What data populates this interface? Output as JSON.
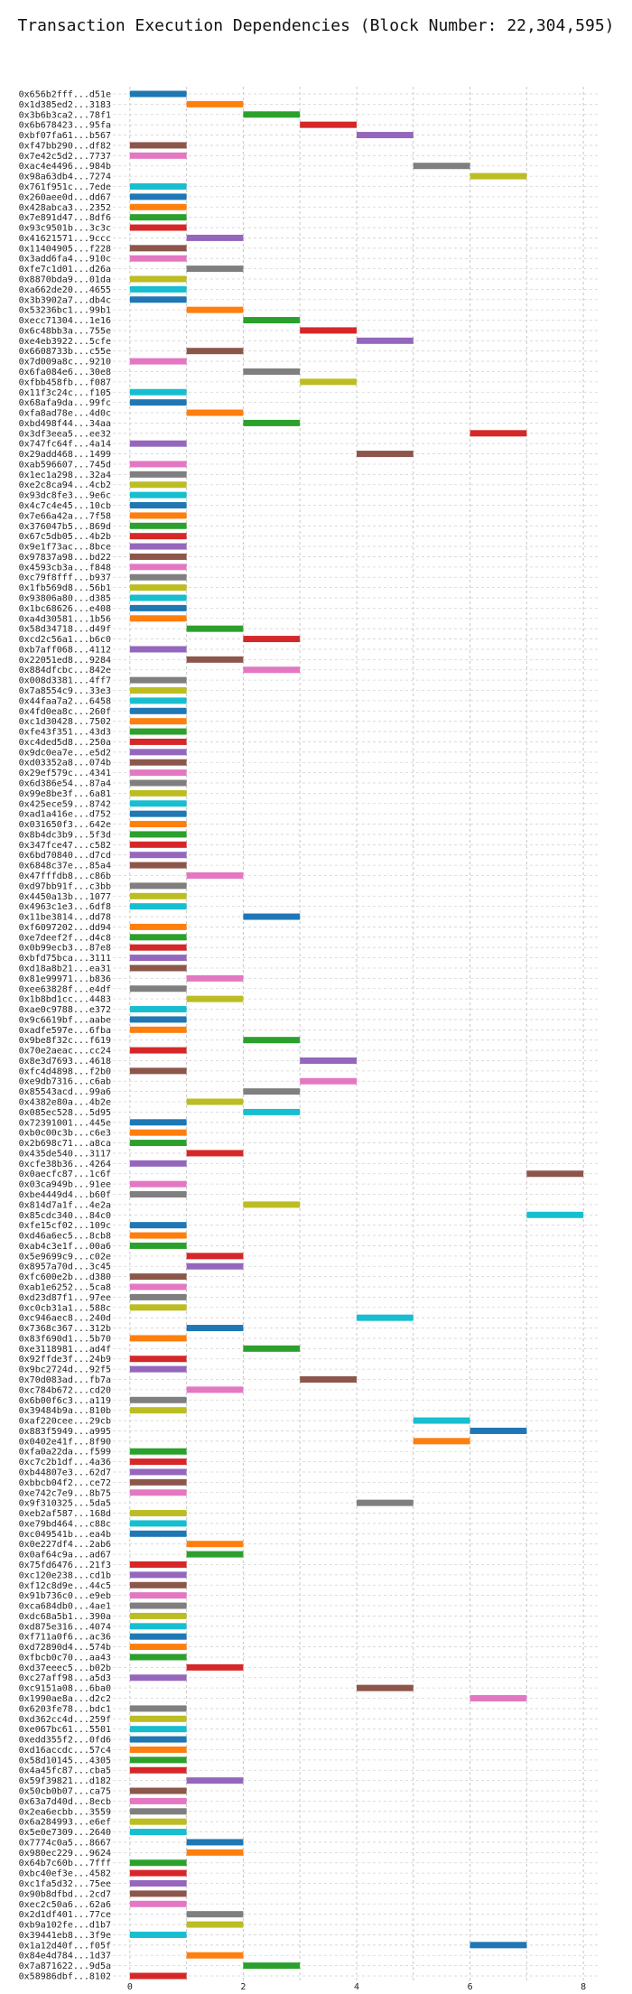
{
  "chart_data": {
    "type": "bar",
    "orientation": "horizontal",
    "title": "Transaction Execution Dependencies (Block Number: 22,304,595)",
    "xlabel": "",
    "ylabel": "",
    "xlim": [
      -0.3,
      8.3
    ],
    "xticks": [
      0,
      2,
      4,
      6,
      8
    ],
    "grid": true,
    "legend": "none",
    "bar_duration": 1,
    "colors": [
      "#1f77b4",
      "#ff7f0e",
      "#2ca02c",
      "#d62728",
      "#9467bd",
      "#8c564b",
      "#e377c2",
      "#7f7f7f",
      "#bcbd22",
      "#17becf"
    ],
    "transactions": [
      {
        "tx": "0x656b2fff...d51e",
        "start": 0
      },
      {
        "tx": "0x1d385ed2...3183",
        "start": 1
      },
      {
        "tx": "0x3b6b3ca2...78f1",
        "start": 2
      },
      {
        "tx": "0x6b678423...95fa",
        "start": 3
      },
      {
        "tx": "0xbf07fa61...b567",
        "start": 4
      },
      {
        "tx": "0xf47bb290...df82",
        "start": 0
      },
      {
        "tx": "0x7e42c5d2...7737",
        "start": 0
      },
      {
        "tx": "0xac4e4496...984b",
        "start": 5
      },
      {
        "tx": "0x98a63db4...7274",
        "start": 6
      },
      {
        "tx": "0x761f951c...7ede",
        "start": 0
      },
      {
        "tx": "0x260aee0d...dd67",
        "start": 0
      },
      {
        "tx": "0x428abca3...2352",
        "start": 0
      },
      {
        "tx": "0x7e891d47...8df6",
        "start": 0
      },
      {
        "tx": "0x93c9501b...3c3c",
        "start": 0
      },
      {
        "tx": "0x41621571...9ccc",
        "start": 1
      },
      {
        "tx": "0x11404905...f228",
        "start": 0
      },
      {
        "tx": "0x3add6fa4...910c",
        "start": 0
      },
      {
        "tx": "0xfe7c1d01...d26a",
        "start": 1
      },
      {
        "tx": "0x8870bda9...01da",
        "start": 0
      },
      {
        "tx": "0xa662de20...4655",
        "start": 0
      },
      {
        "tx": "0x3b3902a7...db4c",
        "start": 0
      },
      {
        "tx": "0x53236bc1...99b1",
        "start": 1
      },
      {
        "tx": "0xecc71304...1e16",
        "start": 2
      },
      {
        "tx": "0x6c48bb3a...755e",
        "start": 3
      },
      {
        "tx": "0xe4eb3922...5cfe",
        "start": 4
      },
      {
        "tx": "0x6608733b...c55e",
        "start": 1
      },
      {
        "tx": "0x7d009a8c...9210",
        "start": 0
      },
      {
        "tx": "0x6fa084e6...30e8",
        "start": 2
      },
      {
        "tx": "0xfbb458fb...f087",
        "start": 3
      },
      {
        "tx": "0x11f3c24c...f105",
        "start": 0
      },
      {
        "tx": "0x68afa9da...99fc",
        "start": 0
      },
      {
        "tx": "0xfa8ad78e...4d0c",
        "start": 1
      },
      {
        "tx": "0xbd498f44...34aa",
        "start": 2
      },
      {
        "tx": "0x3df3eea5...ee32",
        "start": 6
      },
      {
        "tx": "0x747fc64f...4a14",
        "start": 0
      },
      {
        "tx": "0x29add468...1499",
        "start": 4
      },
      {
        "tx": "0xab596607...745d",
        "start": 0
      },
      {
        "tx": "0x1ec1a298...32a4",
        "start": 0
      },
      {
        "tx": "0xe2c8ca94...4cb2",
        "start": 0
      },
      {
        "tx": "0x93dc8fe3...9e6c",
        "start": 0
      },
      {
        "tx": "0x4c7c4e45...10cb",
        "start": 0
      },
      {
        "tx": "0x7e66a42a...7f58",
        "start": 0
      },
      {
        "tx": "0x376047b5...869d",
        "start": 0
      },
      {
        "tx": "0x67c5db05...4b2b",
        "start": 0
      },
      {
        "tx": "0x9e1f73ac...8bce",
        "start": 0
      },
      {
        "tx": "0x97837a98...bd22",
        "start": 0
      },
      {
        "tx": "0x4593cb3a...f848",
        "start": 0
      },
      {
        "tx": "0xc79f8fff...b937",
        "start": 0
      },
      {
        "tx": "0x1fb569d8...56b1",
        "start": 0
      },
      {
        "tx": "0x93806a80...d385",
        "start": 0
      },
      {
        "tx": "0x1bc68626...e408",
        "start": 0
      },
      {
        "tx": "0xa4d30581...1b56",
        "start": 0
      },
      {
        "tx": "0x58d34718...d49f",
        "start": 1
      },
      {
        "tx": "0xcd2c56a1...b6c0",
        "start": 2
      },
      {
        "tx": "0xb7aff068...4112",
        "start": 0
      },
      {
        "tx": "0x22051ed8...9284",
        "start": 1
      },
      {
        "tx": "0x884dfcbc...842e",
        "start": 2
      },
      {
        "tx": "0x008d3381...4ff7",
        "start": 0
      },
      {
        "tx": "0x7a8554c9...33e3",
        "start": 0
      },
      {
        "tx": "0x44faa7a2...6458",
        "start": 0
      },
      {
        "tx": "0x4fd0ea8c...260f",
        "start": 0
      },
      {
        "tx": "0xc1d30428...7502",
        "start": 0
      },
      {
        "tx": "0xfe43f351...43d3",
        "start": 0
      },
      {
        "tx": "0xc4ded5d8...250a",
        "start": 0
      },
      {
        "tx": "0x9dc0ea7e...e5d2",
        "start": 0
      },
      {
        "tx": "0xd03352a8...074b",
        "start": 0
      },
      {
        "tx": "0x29ef579c...4341",
        "start": 0
      },
      {
        "tx": "0x6d386e54...87a4",
        "start": 0
      },
      {
        "tx": "0x99e8be3f...6a81",
        "start": 0
      },
      {
        "tx": "0x425ece59...8742",
        "start": 0
      },
      {
        "tx": "0xad1a416e...d752",
        "start": 0
      },
      {
        "tx": "0x031650f3...642e",
        "start": 0
      },
      {
        "tx": "0x8b4dc3b9...5f3d",
        "start": 0
      },
      {
        "tx": "0x347fce47...c582",
        "start": 0
      },
      {
        "tx": "0x6bd70840...d7cd",
        "start": 0
      },
      {
        "tx": "0x6848c37e...85a4",
        "start": 0
      },
      {
        "tx": "0x47fffdb8...c86b",
        "start": 1
      },
      {
        "tx": "0xd97bb91f...c3bb",
        "start": 0
      },
      {
        "tx": "0x4450a13b...1077",
        "start": 0
      },
      {
        "tx": "0x4963c1e3...6df8",
        "start": 0
      },
      {
        "tx": "0x11be3814...dd78",
        "start": 2
      },
      {
        "tx": "0xf6097202...dd94",
        "start": 0
      },
      {
        "tx": "0xe7deef2f...d4c8",
        "start": 0
      },
      {
        "tx": "0x0b99ecb3...87e8",
        "start": 0
      },
      {
        "tx": "0xbfd75bca...3111",
        "start": 0
      },
      {
        "tx": "0xd18a8b21...ea31",
        "start": 0
      },
      {
        "tx": "0x81e99971...b836",
        "start": 1
      },
      {
        "tx": "0xee63828f...e4df",
        "start": 0
      },
      {
        "tx": "0x1b8bd1cc...4483",
        "start": 1
      },
      {
        "tx": "0xae0c9788...e372",
        "start": 0
      },
      {
        "tx": "0x9c6619bf...aabe",
        "start": 0
      },
      {
        "tx": "0xadfe597e...6fba",
        "start": 0
      },
      {
        "tx": "0x9be8f32c...f619",
        "start": 2
      },
      {
        "tx": "0x70e2aeac...cc24",
        "start": 0
      },
      {
        "tx": "0x8e3d7693...4618",
        "start": 3
      },
      {
        "tx": "0xfc4d4898...f2b0",
        "start": 0
      },
      {
        "tx": "0xe9db7316...c6ab",
        "start": 3
      },
      {
        "tx": "0x85543acd...99a6",
        "start": 2
      },
      {
        "tx": "0x4382e80a...4b2e",
        "start": 1
      },
      {
        "tx": "0x085ec528...5d95",
        "start": 2
      },
      {
        "tx": "0x72391001...445e",
        "start": 0
      },
      {
        "tx": "0xb0c00c3b...c6e3",
        "start": 0
      },
      {
        "tx": "0x2b698c71...a8ca",
        "start": 0
      },
      {
        "tx": "0x435de540...3117",
        "start": 1
      },
      {
        "tx": "0xcfe38b36...4264",
        "start": 0
      },
      {
        "tx": "0x0aecfc87...1c6f",
        "start": 7
      },
      {
        "tx": "0x03ca949b...91ee",
        "start": 0
      },
      {
        "tx": "0xbe4449d4...b60f",
        "start": 0
      },
      {
        "tx": "0x814d7a1f...4e2a",
        "start": 2
      },
      {
        "tx": "0x85cdc340...84c0",
        "start": 7
      },
      {
        "tx": "0xfe15cf02...109c",
        "start": 0
      },
      {
        "tx": "0xd46a6ec5...8cb8",
        "start": 0
      },
      {
        "tx": "0xab4c3e1f...00a6",
        "start": 0
      },
      {
        "tx": "0x5e9699c9...c02e",
        "start": 1
      },
      {
        "tx": "0x8957a70d...3c45",
        "start": 1
      },
      {
        "tx": "0xfc600e2b...d380",
        "start": 0
      },
      {
        "tx": "0xab1e6252...5ca8",
        "start": 0
      },
      {
        "tx": "0xd23d87f1...97ee",
        "start": 0
      },
      {
        "tx": "0xc0cb31a1...588c",
        "start": 0
      },
      {
        "tx": "0xc946aec8...240d",
        "start": 4
      },
      {
        "tx": "0x7368c367...312b",
        "start": 1
      },
      {
        "tx": "0x83f690d1...5b70",
        "start": 0
      },
      {
        "tx": "0xe3118981...ad4f",
        "start": 2
      },
      {
        "tx": "0x92ffde3f...24b9",
        "start": 0
      },
      {
        "tx": "0x9bc2724d...92f5",
        "start": 0
      },
      {
        "tx": "0x70d083ad...fb7a",
        "start": 3
      },
      {
        "tx": "0xc784b672...cd20",
        "start": 1
      },
      {
        "tx": "0x6b00f6c3...a119",
        "start": 0
      },
      {
        "tx": "0x39484b9a...810b",
        "start": 0
      },
      {
        "tx": "0xaf220cee...29cb",
        "start": 5
      },
      {
        "tx": "0x883f5949...a995",
        "start": 6
      },
      {
        "tx": "0x0402e41f...8f90",
        "start": 5
      },
      {
        "tx": "0xfa0a22da...f599",
        "start": 0
      },
      {
        "tx": "0xc7c2b1df...4a36",
        "start": 0
      },
      {
        "tx": "0xb44807e3...62d7",
        "start": 0
      },
      {
        "tx": "0xbbcb04f2...ce72",
        "start": 0
      },
      {
        "tx": "0xe742c7e9...8b75",
        "start": 0
      },
      {
        "tx": "0x9f310325...5da5",
        "start": 4
      },
      {
        "tx": "0xeb2af587...168d",
        "start": 0
      },
      {
        "tx": "0xe79bd464...c88c",
        "start": 0
      },
      {
        "tx": "0xc049541b...ea4b",
        "start": 0
      },
      {
        "tx": "0x0e227df4...2ab6",
        "start": 1
      },
      {
        "tx": "0x0af64c9a...ad67",
        "start": 1
      },
      {
        "tx": "0x75fd6476...21f3",
        "start": 0
      },
      {
        "tx": "0xc120e238...cd1b",
        "start": 0
      },
      {
        "tx": "0xf12c8d9e...44c5",
        "start": 0
      },
      {
        "tx": "0x91b736c0...e9eb",
        "start": 0
      },
      {
        "tx": "0xca684db0...4ae1",
        "start": 0
      },
      {
        "tx": "0xdc68a5b1...390a",
        "start": 0
      },
      {
        "tx": "0xd875e316...4074",
        "start": 0
      },
      {
        "tx": "0xf711a0f6...ac36",
        "start": 0
      },
      {
        "tx": "0xd72890d4...574b",
        "start": 0
      },
      {
        "tx": "0xfbcb0c70...aa43",
        "start": 0
      },
      {
        "tx": "0xd37eeec5...b02b",
        "start": 1
      },
      {
        "tx": "0xc27aff98...a5d3",
        "start": 0
      },
      {
        "tx": "0xc9151a08...6ba0",
        "start": 4
      },
      {
        "tx": "0x1990ae8a...d2c2",
        "start": 6
      },
      {
        "tx": "0x6203fe78...bdc1",
        "start": 0
      },
      {
        "tx": "0xd362cc4d...259f",
        "start": 0
      },
      {
        "tx": "0xe067bc61...5501",
        "start": 0
      },
      {
        "tx": "0xedd355f2...0fd6",
        "start": 0
      },
      {
        "tx": "0xd16accdc...57c4",
        "start": 0
      },
      {
        "tx": "0x58d10145...4305",
        "start": 0
      },
      {
        "tx": "0x4a45fc87...cba5",
        "start": 0
      },
      {
        "tx": "0x59f39821...d182",
        "start": 1
      },
      {
        "tx": "0x50cb0b07...ca75",
        "start": 0
      },
      {
        "tx": "0x63a7d40d...8ecb",
        "start": 0
      },
      {
        "tx": "0x2ea6ecbb...3559",
        "start": 0
      },
      {
        "tx": "0x6a284993...e6ef",
        "start": 0
      },
      {
        "tx": "0x5e0e7309...2640",
        "start": 0
      },
      {
        "tx": "0x7774c0a5...8667",
        "start": 1
      },
      {
        "tx": "0x980ec229...9624",
        "start": 1
      },
      {
        "tx": "0x64b7c60b...7fff",
        "start": 0
      },
      {
        "tx": "0xbc40ef3e...4582",
        "start": 0
      },
      {
        "tx": "0xc1fa5d32...75ee",
        "start": 0
      },
      {
        "tx": "0x90b8dfbd...2cd7",
        "start": 0
      },
      {
        "tx": "0xec2c50a6...62a6",
        "start": 0
      },
      {
        "tx": "0x2d1df401...77ce",
        "start": 1
      },
      {
        "tx": "0xb9a102fe...d1b7",
        "start": 1
      },
      {
        "tx": "0x39441eb8...3f9e",
        "start": 0
      },
      {
        "tx": "0x1a12d40f...f05f",
        "start": 6
      },
      {
        "tx": "0x84e4d784...1d37",
        "start": 1
      },
      {
        "tx": "0x7a871622...9d5a",
        "start": 2
      },
      {
        "tx": "0x58986dbf...8102",
        "start": 0
      }
    ]
  }
}
